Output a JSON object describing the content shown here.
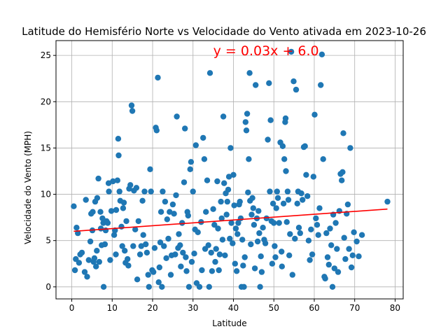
{
  "chart_data": {
    "type": "scatter",
    "title": "Latitude do Hemisfério Norte vs Velocidade do Vento ativada em 2023-10-26",
    "xlabel": "Latitude",
    "ylabel": "Velocidade do Vento (MPH)",
    "xlim": [
      -3.9,
      82
    ],
    "ylim": [
      -1.3,
      26.6
    ],
    "xticks": [
      0,
      10,
      20,
      30,
      40,
      50,
      60,
      70,
      80
    ],
    "yticks": [
      0,
      5,
      10,
      15,
      20,
      25
    ],
    "grid": true,
    "series": [
      {
        "type": "scatter",
        "color": "#1f77b4",
        "points": [
          [
            0.5,
            8.7
          ],
          [
            0.8,
            1.8
          ],
          [
            1,
            3
          ],
          [
            1.2,
            6.4
          ],
          [
            1.5,
            5.8
          ],
          [
            1.8,
            2.6
          ],
          [
            2.1,
            3.5
          ],
          [
            2.5,
            3.7
          ],
          [
            3.2,
            1.6
          ],
          [
            3.5,
            9.4
          ],
          [
            3.8,
            1.1
          ],
          [
            4.2,
            2.9
          ],
          [
            4.6,
            4.9
          ],
          [
            4.8,
            7.9
          ],
          [
            5.1,
            6.1
          ],
          [
            5.2,
            8.1
          ],
          [
            5.4,
            2.7
          ],
          [
            5.6,
            3.1
          ],
          [
            5.8,
            9.2
          ],
          [
            6,
            2.2
          ],
          [
            6.2,
            3.9
          ],
          [
            6.3,
            9.6
          ],
          [
            6.6,
            11.7
          ],
          [
            6.8,
            2.7
          ],
          [
            7.1,
            8.1
          ],
          [
            7.2,
            6.3
          ],
          [
            7.4,
            4.5
          ],
          [
            7.6,
            7.4
          ],
          [
            7.8,
            6.9
          ],
          [
            7.9,
            0
          ],
          [
            8.2,
            4.6
          ],
          [
            8.4,
            6.1
          ],
          [
            8.6,
            7.1
          ],
          [
            8.9,
            6.9
          ],
          [
            9.1,
            11.2
          ],
          [
            9.2,
            10.3
          ],
          [
            9.5,
            2.9
          ],
          [
            9.8,
            8.2
          ],
          [
            10.2,
            11.4
          ],
          [
            10.5,
            5.6
          ],
          [
            10.7,
            6.1
          ],
          [
            10.9,
            3.5
          ],
          [
            11,
            8.3
          ],
          [
            11.3,
            11.5
          ],
          [
            11.5,
            16
          ],
          [
            11.6,
            14.2
          ],
          [
            11.8,
            10.3
          ],
          [
            12,
            9.3
          ],
          [
            12.3,
            6.5
          ],
          [
            12.5,
            4.4
          ],
          [
            12.7,
            8.5
          ],
          [
            12.9,
            9.1
          ],
          [
            13.1,
            3.9
          ],
          [
            13.3,
            2.6
          ],
          [
            13.5,
            7.1
          ],
          [
            13.8,
            3
          ],
          [
            14,
            2.3
          ],
          [
            14.2,
            10.6
          ],
          [
            14.5,
            11
          ],
          [
            14.8,
            19.6
          ],
          [
            15,
            19
          ],
          [
            15.2,
            4.4
          ],
          [
            15.4,
            10.4
          ],
          [
            15.7,
            6.2
          ],
          [
            16,
            10.7
          ],
          [
            16.2,
            0.8
          ],
          [
            16.5,
            7.1
          ],
          [
            16.9,
            3.5
          ],
          [
            17.2,
            4.4
          ],
          [
            17.5,
            9.3
          ],
          [
            17.7,
            5.6
          ],
          [
            18,
            10.3
          ],
          [
            18.3,
            4.6
          ],
          [
            18.6,
            3.7
          ],
          [
            18.9,
            1.3
          ],
          [
            19.1,
            0
          ],
          [
            19.4,
            12.7
          ],
          [
            19.6,
            10.3
          ],
          [
            19.9,
            1.8
          ],
          [
            20.2,
            1.6
          ],
          [
            20.5,
            4.2
          ],
          [
            20.8,
            17.2
          ],
          [
            21,
            16.9
          ],
          [
            21.3,
            22.6
          ],
          [
            21.5,
            0.5
          ],
          [
            21.7,
            2.1
          ],
          [
            21.9,
            4.8
          ],
          [
            22.1,
            8.1
          ],
          [
            22.3,
            0
          ],
          [
            22.5,
            10.3
          ],
          [
            22.8,
            4.4
          ],
          [
            23.1,
            9.2
          ],
          [
            23.4,
            3.1
          ],
          [
            23.6,
            7.3
          ],
          [
            23.9,
            5.2
          ],
          [
            24.2,
            8.1
          ],
          [
            24.5,
            1.3
          ],
          [
            24.7,
            3.4
          ],
          [
            25,
            8.9
          ],
          [
            25.3,
            7.9
          ],
          [
            25.6,
            3.5
          ],
          [
            25.8,
            9.9
          ],
          [
            26,
            18.4
          ],
          [
            26.3,
            4.2
          ],
          [
            26.5,
            5.7
          ],
          [
            26.8,
            4.5
          ],
          [
            27,
            2.2
          ],
          [
            27.3,
            6.9
          ],
          [
            27.5,
            3.7
          ],
          [
            27.8,
            11.3
          ],
          [
            28,
            17.1
          ],
          [
            28.2,
            3.2
          ],
          [
            28.4,
            1.7
          ],
          [
            28.6,
            8.1
          ],
          [
            28.8,
            7.7
          ],
          [
            29,
            0
          ],
          [
            29.3,
            12.7
          ],
          [
            29.5,
            13.5
          ],
          [
            29.7,
            2.7
          ],
          [
            30,
            10.3
          ],
          [
            30.3,
            3.6
          ],
          [
            30.5,
            6.2
          ],
          [
            30.7,
            15.3
          ],
          [
            30.9,
            0.4
          ],
          [
            31.2,
            5.9
          ],
          [
            31.6,
            0
          ],
          [
            32,
            7
          ],
          [
            32.2,
            1.8
          ],
          [
            32.5,
            16.1
          ],
          [
            32.8,
            13.8
          ],
          [
            33,
            4.1
          ],
          [
            33.2,
            8.1
          ],
          [
            33.5,
            11.5
          ],
          [
            33.8,
            4.5
          ],
          [
            34,
            0
          ],
          [
            34.2,
            23.1
          ],
          [
            34.5,
            3.7
          ],
          [
            34.7,
            1.7
          ],
          [
            35,
            8.4
          ],
          [
            35.3,
            6.7
          ],
          [
            35.5,
            2.7
          ],
          [
            35.7,
            4.1
          ],
          [
            36,
            11.4
          ],
          [
            36.2,
            6.3
          ],
          [
            36.4,
            1.8
          ],
          [
            36.6,
            3.5
          ],
          [
            36.9,
            9.2
          ],
          [
            37.1,
            7.4
          ],
          [
            37.3,
            5.1
          ],
          [
            37.5,
            18.4
          ],
          [
            37.7,
            11.2
          ],
          [
            37.9,
            3.4
          ],
          [
            38.1,
            10.1
          ],
          [
            38.3,
            7.8
          ],
          [
            38.5,
            9.2
          ],
          [
            38.7,
            10.5
          ],
          [
            38.9,
            11.9
          ],
          [
            39.1,
            5.2
          ],
          [
            39.3,
            15
          ],
          [
            39.5,
            6.9
          ],
          [
            39.8,
            4.7
          ],
          [
            40,
            12.1
          ],
          [
            40.2,
            8.8
          ],
          [
            40.4,
            2.5
          ],
          [
            40.6,
            6.3
          ],
          [
            40.8,
            1.7
          ],
          [
            41,
            5.7
          ],
          [
            41.2,
            6.9
          ],
          [
            41.4,
            8.9
          ],
          [
            41.6,
            9.2
          ],
          [
            41.8,
            7.4
          ],
          [
            42,
            0
          ],
          [
            42.2,
            5.1
          ],
          [
            42.4,
            2.3
          ],
          [
            42.6,
            0
          ],
          [
            42.8,
            3.2
          ],
          [
            43,
            17.8
          ],
          [
            43.2,
            16.9
          ],
          [
            43.4,
            18.7
          ],
          [
            43.6,
            10.2
          ],
          [
            43.8,
            13.8
          ],
          [
            44,
            23.1
          ],
          [
            44.1,
            9.3
          ],
          [
            44.3,
            4.6
          ],
          [
            44.5,
            7.8
          ],
          [
            44.7,
            9.6
          ],
          [
            44.9,
            8.5
          ],
          [
            45.1,
            6.7
          ],
          [
            45.3,
            2
          ],
          [
            45.5,
            21.8
          ],
          [
            45.8,
            7.4
          ],
          [
            46,
            4.9
          ],
          [
            46.2,
            8.2
          ],
          [
            46.4,
            5.8
          ],
          [
            46.6,
            0
          ],
          [
            46.8,
            3.3
          ],
          [
            47,
            1.6
          ],
          [
            47.3,
            6.4
          ],
          [
            47.6,
            5.1
          ],
          [
            47.9,
            4.7
          ],
          [
            48.2,
            7.4
          ],
          [
            48.5,
            15.9
          ],
          [
            48.8,
            22
          ],
          [
            49,
            10.3
          ],
          [
            49.2,
            18
          ],
          [
            49.4,
            7.1
          ],
          [
            49.6,
            2.5
          ],
          [
            49.8,
            9
          ],
          [
            50,
            6.9
          ],
          [
            50.2,
            4.4
          ],
          [
            50.4,
            3.2
          ],
          [
            50.6,
            8.5
          ],
          [
            50.8,
            10.3
          ],
          [
            51,
            9.6
          ],
          [
            51.3,
            6.9
          ],
          [
            51.6,
            15.6
          ],
          [
            51.9,
            3.8
          ],
          [
            52,
            2.2
          ],
          [
            52.2,
            15.2
          ],
          [
            52.4,
            9
          ],
          [
            52.6,
            13.8
          ],
          [
            52.8,
            17.8
          ],
          [
            52.9,
            18.2
          ],
          [
            53,
            12.5
          ],
          [
            53.2,
            7
          ],
          [
            53.4,
            10.3
          ],
          [
            53.6,
            9.4
          ],
          [
            53.8,
            3.4
          ],
          [
            54,
            5.7
          ],
          [
            54.3,
            25.4
          ],
          [
            54.6,
            1.3
          ],
          [
            54.9,
            22.2
          ],
          [
            55.2,
            5.2
          ],
          [
            55.5,
            21.3
          ],
          [
            55.8,
            9
          ],
          [
            56,
            10.3
          ],
          [
            56.2,
            6.4
          ],
          [
            56.5,
            5.8
          ],
          [
            56.8,
            10.1
          ],
          [
            57.1,
            9.4
          ],
          [
            57.4,
            15.1
          ],
          [
            57.7,
            15.2
          ],
          [
            58,
            12.1
          ],
          [
            58.3,
            9.8
          ],
          [
            58.6,
            5
          ],
          [
            58.9,
            2.9
          ],
          [
            59.2,
            6.2
          ],
          [
            59.5,
            3.5
          ],
          [
            59.8,
            11.9
          ],
          [
            60.1,
            18.6
          ],
          [
            60.4,
            7.4
          ],
          [
            60.7,
            6.7
          ],
          [
            61,
            5.6
          ],
          [
            61.3,
            8.5
          ],
          [
            61.6,
            21.8
          ],
          [
            61.9,
            25.1
          ],
          [
            62.2,
            13.8
          ],
          [
            62.5,
            1.1
          ],
          [
            62.7,
            0.9
          ],
          [
            63,
            5.8
          ],
          [
            63.3,
            3.2
          ],
          [
            63.6,
            2.4
          ],
          [
            63.9,
            6.3
          ],
          [
            64.2,
            4.5
          ],
          [
            64.5,
            0
          ],
          [
            64.7,
            7.8
          ],
          [
            65,
            2
          ],
          [
            65.3,
            6.9
          ],
          [
            65.6,
            4.1
          ],
          [
            65.9,
            1.6
          ],
          [
            66.2,
            8.2
          ],
          [
            66.5,
            12.2
          ],
          [
            66.8,
            11.5
          ],
          [
            67,
            12.4
          ],
          [
            67.2,
            16.6
          ],
          [
            67.4,
            5.3
          ],
          [
            67.7,
            3
          ],
          [
            68,
            7.9
          ],
          [
            68.3,
            8.9
          ],
          [
            68.6,
            4.1
          ],
          [
            68.9,
            15
          ],
          [
            69.2,
            2.1
          ],
          [
            69.5,
            3.4
          ],
          [
            69.8,
            5.9
          ],
          [
            70.5,
            4.9
          ],
          [
            71,
            3.3
          ],
          [
            71.8,
            5.6
          ],
          [
            78.1,
            9.2
          ]
        ]
      },
      {
        "type": "line",
        "color": "#ff0000",
        "x": [
          0.5,
          78.1
        ],
        "y": [
          6.0,
          8.4
        ]
      }
    ],
    "annotations": [
      {
        "text": "y = 0.03x + 6.0",
        "x": 35,
        "y": 25,
        "color": "#ff0000"
      }
    ]
  }
}
